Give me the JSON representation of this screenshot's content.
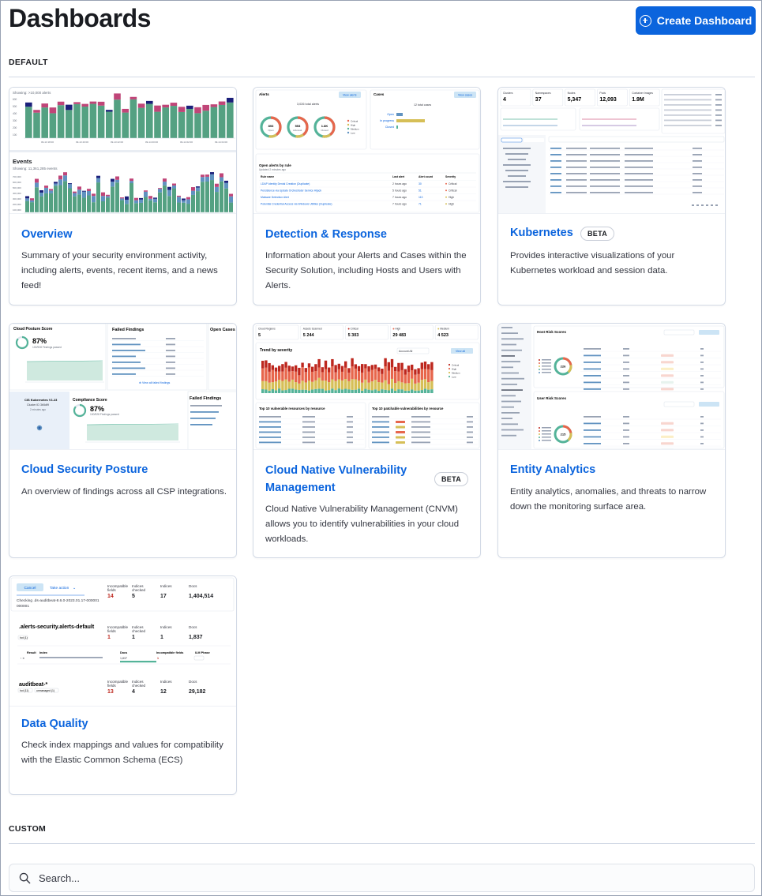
{
  "header": {
    "title": "Dashboards",
    "create_label": "Create Dashboard"
  },
  "sections": {
    "default_label": "DEFAULT",
    "custom_label": "CUSTOM"
  },
  "search": {
    "placeholder": "Search..."
  },
  "cards": [
    {
      "title": "Overview",
      "description": "Summary of your security environment activity, including alerts, events, recent items, and a news feed!",
      "badge": ""
    },
    {
      "title": "Detection & Response",
      "description": "Information about your Alerts and Cases within the Security Solution, including Hosts and Users with Alerts.",
      "badge": ""
    },
    {
      "title": "Kubernetes",
      "description": "Provides interactive visualizations of your Kubernetes workload and session data.",
      "badge": "BETA"
    },
    {
      "title": "Cloud Security Posture",
      "description": "An overview of findings across all CSP integrations.",
      "badge": ""
    },
    {
      "title": "Cloud Native Vulnerability Management",
      "description": "Cloud Native Vulnerability Management (CNVM) allows you to identify vulnerabilities in your cloud workloads.",
      "badge": "BETA"
    },
    {
      "title": "Entity Analytics",
      "description": "Entity analytics, anomalies, and threats to narrow down the monitoring surface area.",
      "badge": ""
    },
    {
      "title": "Data Quality",
      "description": "Check index mappings and values for compatibility with the Elastic Common Schema (ECS)",
      "badge": ""
    }
  ],
  "thumbnails": {
    "overview": {
      "alerts_caption": "Showing: >10,000 alerts",
      "events_title": "Events",
      "events_caption": "Showing: 11,361,285 events"
    },
    "detection": {
      "alerts_title": "Alerts",
      "cases_title": "Cases",
      "view_alerts": "View alerts",
      "view_cases": "View cases",
      "donut_values": [
        "893",
        "553",
        "1.8K"
      ],
      "donut_labels": [
        "Open",
        "Acknowl.",
        "Closed"
      ],
      "cases_rows": [
        "Open",
        "In progress",
        "Closed"
      ],
      "open_alerts_title": "Open alerts by rule",
      "rules": [
        "LDAP Identity Denial Creation (Duplicate)",
        "Persistence via Update Orchestrator Service Hijack",
        "Malware Detection Alert",
        "Potential Credential Access via Windows Utilities (Duplicate)"
      ],
      "rule_counts": [
        "30",
        "51",
        "113",
        "71"
      ],
      "rule_severities": [
        "Critical",
        "Critical",
        "High",
        "High"
      ]
    },
    "kubernetes": {
      "stats_labels": [
        "Clusters",
        "Namespaces",
        "Nodes",
        "Pods",
        "Container Images"
      ],
      "stats_values": [
        "4",
        "37",
        "5,347",
        "12,093",
        "1.9M"
      ]
    },
    "csp": {
      "posture_label": "Cloud Posture Score",
      "posture_value": "87%",
      "failed_title": "Failed Findings",
      "open_cases": "Open Cases",
      "compliance_label": "Compliance Score",
      "compliance_value": "87%",
      "cluster_name": "CIS Kubernetes V1.23"
    },
    "cnvm": {
      "stat_labels": [
        "Cloud Regions",
        "Assets Scanned",
        "Critical",
        "High",
        "Medium"
      ],
      "stat_values": [
        "5",
        "5 244",
        "5 303",
        "29 483",
        "4 523"
      ],
      "trend_title": "Trend by severity",
      "resources_title": "Top 10 vulnerable resources by resource",
      "patchable_title": "Top 10 patchable vulnerabilities by resource"
    },
    "entity": {
      "host_title": "Host Risk Scores",
      "user_title": "User Risk Scores",
      "host_total": "226",
      "user_total": "215"
    },
    "data_quality": {
      "cancel": "Cancel",
      "take_action": "Take action",
      "stat_labels": [
        "Incompatible fields",
        "Indices checked",
        "Indices",
        "Docs"
      ],
      "row1": [
        "14",
        "5",
        "17",
        "1,404,514"
      ],
      "checking": "Checking .ds-auditbeat-8.6.0-2023.01.17-000001",
      "index2": ".alerts-security.alerts-default",
      "row2": [
        "1",
        "1",
        "1",
        "1,837"
      ],
      "index3": "auditbeat-*",
      "row3": [
        "13",
        "4",
        "12",
        "29,182"
      ]
    }
  }
}
